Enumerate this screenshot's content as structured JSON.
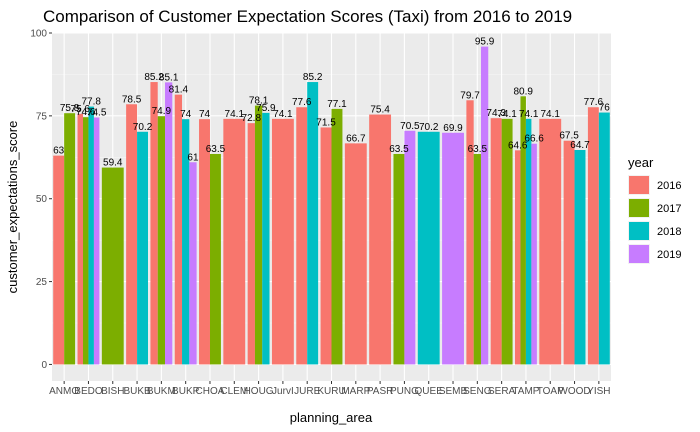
{
  "chart_data": {
    "type": "bar",
    "title": "Comparison of Customer Expectation Scores (Taxi) from 2016 to 2019",
    "xlabel": "planning_area",
    "ylabel": "customer_expectations_score",
    "ylim": [
      0,
      100
    ],
    "yticks": [
      0,
      25,
      50,
      75,
      100
    ],
    "grid": true,
    "legend": {
      "title": "year",
      "placement": "right",
      "entries": [
        {
          "name": "2016",
          "color": "#F8766D"
        },
        {
          "name": "2017",
          "color": "#7CAE00"
        },
        {
          "name": "2018",
          "color": "#00BFC4"
        },
        {
          "name": "2019",
          "color": "#C77CFF"
        }
      ]
    },
    "categories": [
      "ANMO",
      "BEDO",
      "BISH",
      "BUKB",
      "BUKM",
      "BUKP",
      "CHOA",
      "CLEM",
      "HOUG",
      "JurvI",
      "JURE",
      "KURU",
      "MARP",
      "PASR",
      "PUNG",
      "QUEE",
      "SEMB",
      "SENG",
      "SERA",
      "TAMP",
      "TOAP",
      "WOOD",
      "YISH"
    ],
    "series": [
      {
        "name": "2016",
        "values": [
          63,
          75.6,
          null,
          78.5,
          85.2,
          81.4,
          74,
          74.1,
          72.8,
          74.1,
          77.6,
          71.5,
          66.7,
          75.4,
          null,
          null,
          null,
          79.7,
          74.3,
          64.6,
          74.1,
          67.5,
          77.6
        ]
      },
      {
        "name": "2017",
        "values": [
          75.8,
          74.6,
          59.4,
          null,
          74.9,
          null,
          63.5,
          null,
          78.1,
          null,
          null,
          77.1,
          null,
          null,
          63.5,
          null,
          null,
          63.5,
          74.1,
          80.9,
          null,
          null,
          null
        ]
      },
      {
        "name": "2018",
        "values": [
          null,
          77.8,
          null,
          70.2,
          null,
          74,
          null,
          null,
          75.9,
          null,
          85.2,
          null,
          null,
          null,
          null,
          70.2,
          null,
          null,
          null,
          74.1,
          null,
          64.7,
          76
        ]
      },
      {
        "name": "2019",
        "values": [
          null,
          74.5,
          null,
          null,
          85.1,
          61,
          null,
          null,
          null,
          null,
          null,
          null,
          null,
          null,
          70.5,
          null,
          69.9,
          95.9,
          null,
          66.6,
          null,
          null,
          null
        ]
      }
    ]
  }
}
